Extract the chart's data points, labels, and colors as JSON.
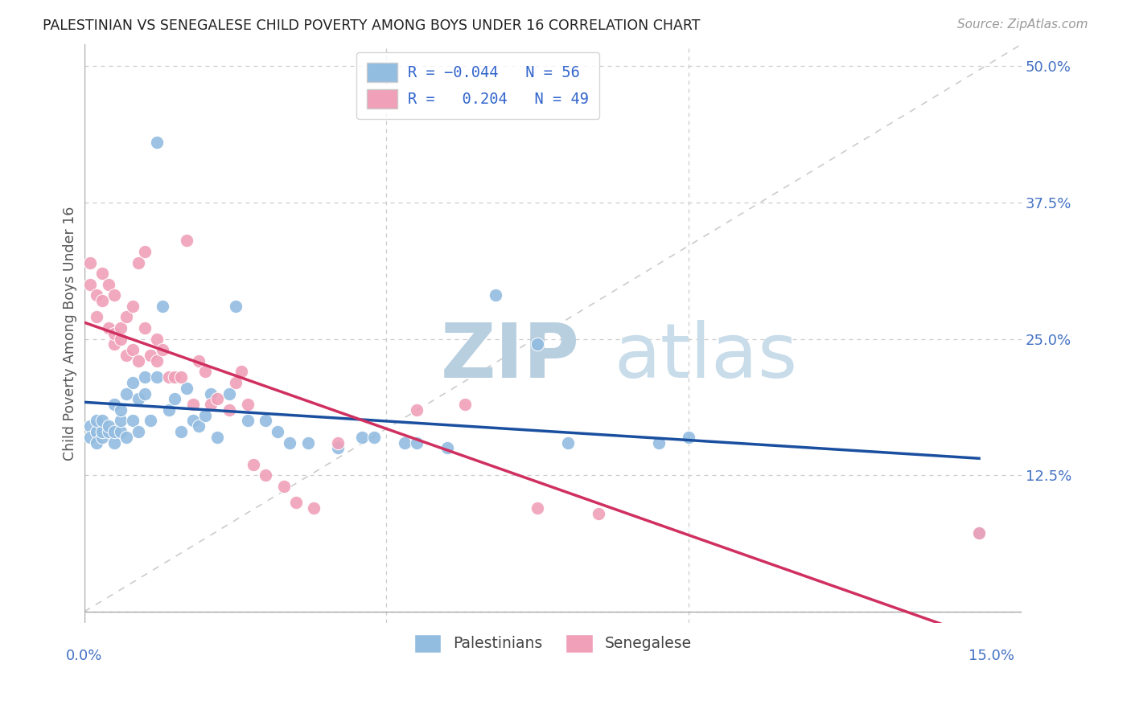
{
  "title": "PALESTINIAN VS SENEGALESE CHILD POVERTY AMONG BOYS UNDER 16 CORRELATION CHART",
  "source": "Source: ZipAtlas.com",
  "ylabel": "Child Poverty Among Boys Under 16",
  "xlim": [
    0,
    0.155
  ],
  "ylim": [
    -0.01,
    0.52
  ],
  "ytick_positions": [
    0.0,
    0.125,
    0.25,
    0.375,
    0.5
  ],
  "ytick_labels": [
    "",
    "12.5%",
    "25.0%",
    "37.5%",
    "50.0%"
  ],
  "blue_color": "#92bce0",
  "pink_color": "#f0a0b8",
  "blue_line_color": "#1a4fa0",
  "pink_line_color": "#d03060",
  "diag_color": "#cccccc",
  "grid_color": "#cccccc",
  "tick_color": "#4472c4",
  "title_color": "#222222",
  "source_color": "#999999",
  "legend_label_color": "#3366cc",
  "watermark_zip_color": "#b8cfe0",
  "watermark_atlas_color": "#c8dcea",
  "pal_x": [
    0.001,
    0.001,
    0.002,
    0.002,
    0.002,
    0.003,
    0.003,
    0.003,
    0.004,
    0.004,
    0.005,
    0.005,
    0.005,
    0.006,
    0.006,
    0.006,
    0.007,
    0.007,
    0.008,
    0.008,
    0.009,
    0.009,
    0.01,
    0.01,
    0.011,
    0.012,
    0.012,
    0.013,
    0.014,
    0.015,
    0.016,
    0.017,
    0.018,
    0.019,
    0.02,
    0.021,
    0.022,
    0.024,
    0.025,
    0.027,
    0.03,
    0.032,
    0.034,
    0.037,
    0.042,
    0.046,
    0.048,
    0.053,
    0.055,
    0.06,
    0.068,
    0.075,
    0.08,
    0.095,
    0.1,
    0.148
  ],
  "pal_y": [
    0.17,
    0.16,
    0.165,
    0.155,
    0.175,
    0.16,
    0.165,
    0.175,
    0.165,
    0.17,
    0.155,
    0.165,
    0.19,
    0.165,
    0.175,
    0.185,
    0.2,
    0.16,
    0.175,
    0.21,
    0.165,
    0.195,
    0.2,
    0.215,
    0.175,
    0.215,
    0.43,
    0.28,
    0.185,
    0.195,
    0.165,
    0.205,
    0.175,
    0.17,
    0.18,
    0.2,
    0.16,
    0.2,
    0.28,
    0.175,
    0.175,
    0.165,
    0.155,
    0.155,
    0.15,
    0.16,
    0.16,
    0.155,
    0.155,
    0.15,
    0.29,
    0.245,
    0.155,
    0.155,
    0.16,
    0.072
  ],
  "sen_x": [
    0.001,
    0.001,
    0.002,
    0.002,
    0.003,
    0.003,
    0.004,
    0.004,
    0.005,
    0.005,
    0.005,
    0.006,
    0.006,
    0.007,
    0.007,
    0.008,
    0.008,
    0.009,
    0.009,
    0.01,
    0.01,
    0.011,
    0.012,
    0.012,
    0.013,
    0.014,
    0.015,
    0.016,
    0.017,
    0.018,
    0.019,
    0.02,
    0.021,
    0.022,
    0.024,
    0.025,
    0.026,
    0.027,
    0.028,
    0.03,
    0.033,
    0.035,
    0.038,
    0.042,
    0.055,
    0.063,
    0.075,
    0.085,
    0.148
  ],
  "sen_y": [
    0.3,
    0.32,
    0.29,
    0.27,
    0.285,
    0.31,
    0.3,
    0.26,
    0.245,
    0.255,
    0.29,
    0.25,
    0.26,
    0.235,
    0.27,
    0.24,
    0.28,
    0.23,
    0.32,
    0.26,
    0.33,
    0.235,
    0.23,
    0.25,
    0.24,
    0.215,
    0.215,
    0.215,
    0.34,
    0.19,
    0.23,
    0.22,
    0.19,
    0.195,
    0.185,
    0.21,
    0.22,
    0.19,
    0.135,
    0.125,
    0.115,
    0.1,
    0.095,
    0.155,
    0.185,
    0.19,
    0.095,
    0.09,
    0.072
  ]
}
